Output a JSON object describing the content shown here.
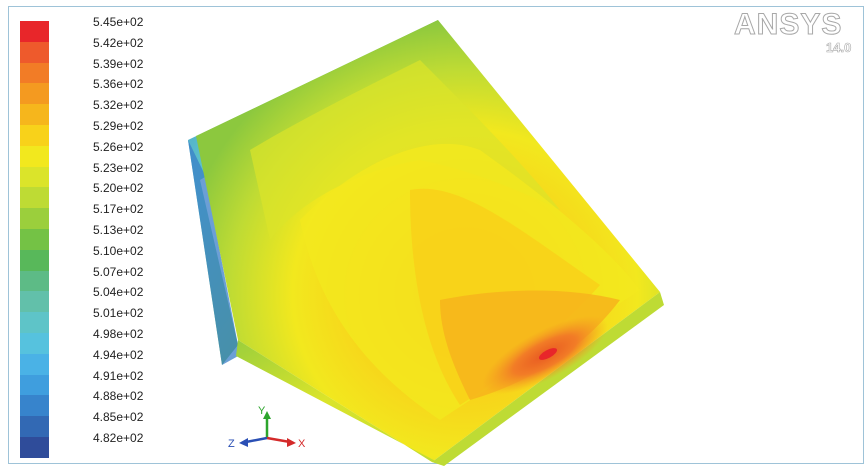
{
  "logo": {
    "brand": "ANSYS",
    "version": "14.0"
  },
  "legend": {
    "levels": [
      {
        "label": "5.45e+02",
        "color": "#e8262a"
      },
      {
        "label": "5.42e+02",
        "color": "#ee5a2c"
      },
      {
        "label": "5.39e+02",
        "color": "#f27c26"
      },
      {
        "label": "5.36e+02",
        "color": "#f49a20"
      },
      {
        "label": "5.32e+02",
        "color": "#f6b61c"
      },
      {
        "label": "5.29e+02",
        "color": "#f8d21a"
      },
      {
        "label": "5.26e+02",
        "color": "#f2e81e"
      },
      {
        "label": "5.23e+02",
        "color": "#dbe42a"
      },
      {
        "label": "5.20e+02",
        "color": "#bedb34"
      },
      {
        "label": "5.17e+02",
        "color": "#9bcf3c"
      },
      {
        "label": "5.13e+02",
        "color": "#74c245"
      },
      {
        "label": "5.10e+02",
        "color": "#58b85a"
      },
      {
        "label": "5.07e+02",
        "color": "#5dbb86"
      },
      {
        "label": "5.04e+02",
        "color": "#62c0aa"
      },
      {
        "label": "5.01e+02",
        "color": "#5ec4c8"
      },
      {
        "label": "4.98e+02",
        "color": "#56c2de"
      },
      {
        "label": "4.94e+02",
        "color": "#4ab2e6"
      },
      {
        "label": "4.91e+02",
        "color": "#3f9ede"
      },
      {
        "label": "4.88e+02",
        "color": "#3784cc"
      },
      {
        "label": "4.85e+02",
        "color": "#3269b4"
      },
      {
        "label": "4.82e+02",
        "color": "#2f4c9a"
      }
    ]
  },
  "axes": {
    "x": "X",
    "y": "Y",
    "z": "Z"
  }
}
